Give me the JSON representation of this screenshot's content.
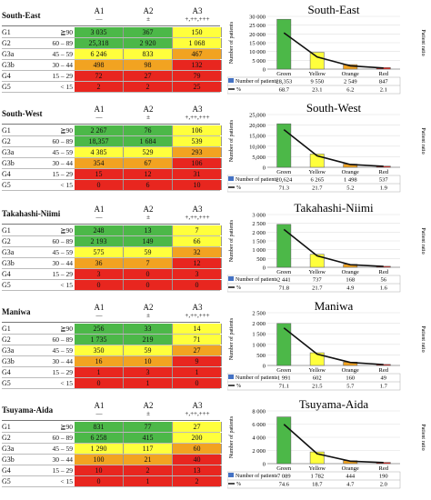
{
  "colors": {
    "green": "#4cb848",
    "yellow": "#ffff3c",
    "orange": "#f2a321",
    "red": "#e8261f",
    "line": "#111111",
    "legend_box": "#4472c4"
  },
  "table_header": {
    "cols": [
      {
        "name": "A1",
        "sub": "—"
      },
      {
        "name": "A2",
        "sub": "±"
      },
      {
        "name": "A3",
        "sub": "+,++,+++"
      }
    ],
    "groups": [
      {
        "name": "G1",
        "range": "≧90"
      },
      {
        "name": "G2",
        "range": "60 – 89"
      },
      {
        "name": "G3a",
        "range": "45 – 59"
      },
      {
        "name": "G3b",
        "range": "30 – 44"
      },
      {
        "name": "G4",
        "range": "15 – 29"
      },
      {
        "name": "G5",
        "range": "< 15"
      }
    ]
  },
  "regions": [
    {
      "name": "South-East",
      "cells": [
        [
          "3 035",
          "367",
          "150"
        ],
        [
          "25,318",
          "2 920",
          "1 068"
        ],
        [
          "6 246",
          "833",
          "467"
        ],
        [
          "498",
          "98",
          "132"
        ],
        [
          "72",
          "27",
          "79"
        ],
        [
          "2",
          "2",
          "25"
        ]
      ]
    },
    {
      "name": "South-West",
      "cells": [
        [
          "2 267",
          "76",
          "106"
        ],
        [
          "18,357",
          "1 684",
          "539"
        ],
        [
          "4 385",
          "529",
          "293"
        ],
        [
          "354",
          "67",
          "106"
        ],
        [
          "15",
          "12",
          "31"
        ],
        [
          "0",
          "6",
          "10"
        ]
      ]
    },
    {
      "name": "Takahashi-Niimi",
      "cells": [
        [
          "248",
          "13",
          "7"
        ],
        [
          "2 193",
          "149",
          "66"
        ],
        [
          "575",
          "59",
          "32"
        ],
        [
          "36",
          "7",
          "12"
        ],
        [
          "3",
          "0",
          "3"
        ],
        [
          "0",
          "0",
          "0"
        ]
      ]
    },
    {
      "name": "Maniwa",
      "cells": [
        [
          "256",
          "33",
          "14"
        ],
        [
          "1 735",
          "219",
          "71"
        ],
        [
          "350",
          "59",
          "27"
        ],
        [
          "16",
          "10",
          "9"
        ],
        [
          "1",
          "3",
          "1"
        ],
        [
          "0",
          "1",
          "0"
        ]
      ]
    },
    {
      "name": "Tsuyama-Aida",
      "cells": [
        [
          "831",
          "77",
          "27"
        ],
        [
          "6 258",
          "415",
          "200"
        ],
        [
          "1 290",
          "117",
          "60"
        ],
        [
          "100",
          "21",
          "40"
        ],
        [
          "10",
          "2",
          "13"
        ],
        [
          "0",
          "1",
          "2"
        ]
      ]
    }
  ],
  "chart_common": {
    "ylabel": "Number of patients",
    "y2label": "Patient ratio",
    "legend_bar": "Number of patients",
    "legend_line": "%"
  },
  "chart_data": [
    {
      "type": "bar",
      "title": "South-East",
      "categories": [
        "Green",
        "Yellow",
        "Orange",
        "Red"
      ],
      "series": [
        {
          "name": "Number of patients",
          "values": [
            28353,
            9550,
            2549,
            847
          ]
        },
        {
          "name": "%",
          "values": [
            68.7,
            23.1,
            6.2,
            2.1
          ]
        }
      ],
      "ylim": [
        0,
        30000
      ],
      "yticks": [
        "0",
        "5 000",
        "10 000",
        "15 000",
        "20 000",
        "25 000",
        "30 000"
      ],
      "value_labels": [
        "28,353",
        "9 550",
        "2 549",
        "847"
      ],
      "pct_labels": [
        "68.7",
        "23.1",
        "6.2",
        "2.1"
      ]
    },
    {
      "type": "bar",
      "title": "South-West",
      "categories": [
        "Green",
        "Yellow",
        "Orange",
        "Red"
      ],
      "series": [
        {
          "name": "Number of patients",
          "values": [
            20624,
            6265,
            1498,
            537
          ]
        },
        {
          "name": "%",
          "values": [
            71.3,
            21.7,
            5.2,
            1.9
          ]
        }
      ],
      "ylim": [
        0,
        25000
      ],
      "yticks": [
        "0",
        "5,000",
        "10,000",
        "15,000",
        "20,000",
        "25,000"
      ],
      "value_labels": [
        "20,624",
        "6 265",
        "1 498",
        "537"
      ],
      "pct_labels": [
        "71.3",
        "21.7",
        "5.2",
        "1.9"
      ]
    },
    {
      "type": "bar",
      "title": "Takahashi-Niimi",
      "categories": [
        "Green",
        "Yellow",
        "Orange",
        "Red"
      ],
      "series": [
        {
          "name": "Number of patients",
          "values": [
            2441,
            737,
            168,
            56
          ]
        },
        {
          "name": "%",
          "values": [
            71.8,
            21.7,
            4.9,
            1.6
          ]
        }
      ],
      "ylim": [
        0,
        3000
      ],
      "yticks": [
        "0",
        "500",
        "1 000",
        "1 500",
        "2 000",
        "2 500",
        "3 000"
      ],
      "value_labels": [
        "2 441",
        "737",
        "168",
        "56"
      ],
      "pct_labels": [
        "71.8",
        "21.7",
        "4.9",
        "1.6"
      ]
    },
    {
      "type": "bar",
      "title": "Maniwa",
      "categories": [
        "Green",
        "Yellow",
        "Orange",
        "Red"
      ],
      "series": [
        {
          "name": "Number of patients",
          "values": [
            1991,
            602,
            160,
            49
          ]
        },
        {
          "name": "%",
          "values": [
            71.1,
            21.5,
            5.7,
            1.7
          ]
        }
      ],
      "ylim": [
        0,
        2500
      ],
      "yticks": [
        "0",
        "500",
        "1 000",
        "1 500",
        "2 000",
        "2 500"
      ],
      "value_labels": [
        "1 991",
        "602",
        "160",
        "49"
      ],
      "pct_labels": [
        "71.1",
        "21.5",
        "5.7",
        "1.7"
      ]
    },
    {
      "type": "bar",
      "title": "Tsuyama-Aida",
      "categories": [
        "Green",
        "Yellow",
        "Orange",
        "Red"
      ],
      "series": [
        {
          "name": "Number of patients",
          "values": [
            7089,
            1782,
            444,
            190
          ]
        },
        {
          "name": "%",
          "values": [
            74.6,
            18.7,
            4.7,
            2.0
          ]
        }
      ],
      "ylim": [
        0,
        8000
      ],
      "yticks": [
        "0",
        "2 000",
        "4 000",
        "6 000",
        "8 000"
      ],
      "value_labels": [
        "7 089",
        "1 782",
        "444",
        "190"
      ],
      "pct_labels": [
        "74.6",
        "18.7",
        "4.7",
        "2.0"
      ]
    }
  ]
}
